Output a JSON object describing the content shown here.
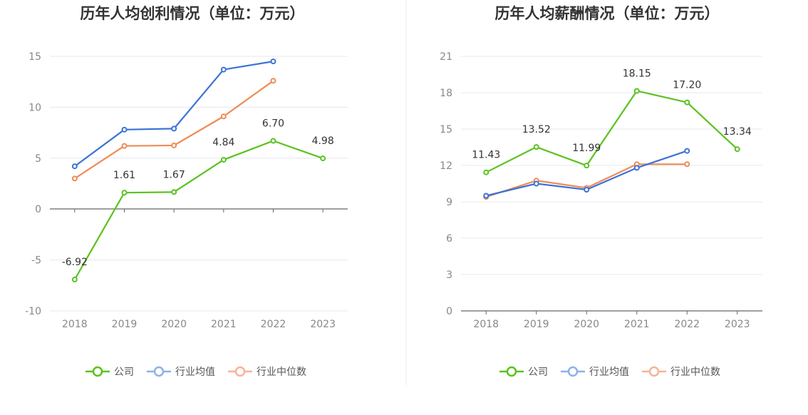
{
  "colors": {
    "company": "#5bc21e",
    "industry_avg": "#3b73d6",
    "industry_median": "#f08a55",
    "company_legend": "#5bc21e",
    "avg_legend": "#8fb0ea",
    "median_legend": "#f6b497",
    "grid": "#e4e8f0",
    "axis": "#666666",
    "divider": "#eeeeee"
  },
  "legend": [
    "公司",
    "行业均值",
    "行业中位数"
  ],
  "chart_data": [
    {
      "type": "line",
      "title": "历年人均创利情况（单位：万元）",
      "categories": [
        "2018",
        "2019",
        "2020",
        "2021",
        "2022",
        "2023"
      ],
      "yticks": [
        "15",
        "10",
        "5",
        "0",
        "-5",
        "-10"
      ],
      "ylim": [
        -10,
        15
      ],
      "grid": true,
      "legend_position": "bottom",
      "series": [
        {
          "name": "公司",
          "values": [
            -6.92,
            1.61,
            1.67,
            4.84,
            6.7,
            4.98
          ],
          "labels": [
            "-6.92",
            "1.61",
            "1.67",
            "4.84",
            "6.70",
            "4.98"
          ]
        },
        {
          "name": "行业均值",
          "values": [
            4.2,
            7.8,
            7.9,
            13.7,
            14.5,
            null
          ]
        },
        {
          "name": "行业中位数",
          "values": [
            3.0,
            6.2,
            6.25,
            9.1,
            12.6,
            null
          ]
        }
      ]
    },
    {
      "type": "line",
      "title": "历年人均薪酬情况（单位：万元）",
      "categories": [
        "2018",
        "2019",
        "2020",
        "2021",
        "2022",
        "2023"
      ],
      "yticks": [
        "21",
        "18",
        "15",
        "12",
        "9",
        "6",
        "3",
        "0"
      ],
      "ylim": [
        0,
        21
      ],
      "grid": true,
      "legend_position": "bottom",
      "series": [
        {
          "name": "公司",
          "values": [
            11.43,
            13.52,
            11.99,
            18.15,
            17.2,
            13.34
          ],
          "labels": [
            "11.43",
            "13.52",
            "11.99",
            "18.15",
            "17.20",
            "13.34"
          ]
        },
        {
          "name": "行业均值",
          "values": [
            9.5,
            10.5,
            10.0,
            11.8,
            13.2,
            null
          ]
        },
        {
          "name": "行业中位数",
          "values": [
            9.4,
            10.75,
            10.15,
            12.1,
            12.1,
            null
          ]
        }
      ]
    }
  ]
}
